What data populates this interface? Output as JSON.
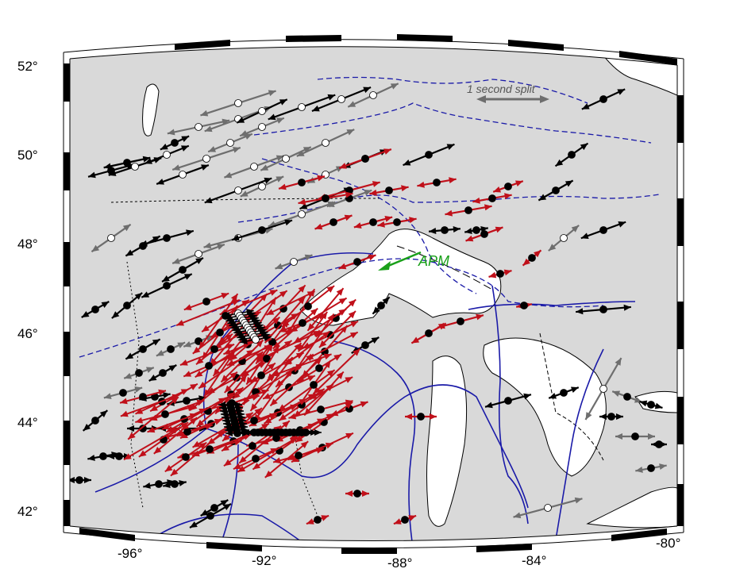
{
  "map": {
    "projection": "conic",
    "extent": {
      "lon": [
        -97.5,
        -80.0
      ],
      "lat": [
        41.7,
        52.0
      ]
    },
    "colors": {
      "land": "#d9d9d9",
      "water": "#ffffff",
      "coast": "#000000",
      "boundary_solid": "#1a1aa8",
      "boundary_dashed": "#1a1aa8",
      "split_black": "#000000",
      "split_gray": "#6e6e6e",
      "split_red": "#c0101a",
      "apm": "#1aa01a",
      "frame": "#000000"
    }
  },
  "axes": {
    "lat_labels": [
      "52°",
      "50°",
      "48°",
      "46°",
      "44°",
      "42°"
    ],
    "lon_labels": [
      "-96°",
      "-92°",
      "-88°",
      "-84°",
      "-80°"
    ]
  },
  "legend": {
    "label": "1 second split"
  },
  "apm": {
    "label": "APM",
    "icon": "arrow-icon"
  },
  "station_legend": {
    "filled": "station-filled-icon",
    "open": "station-open-icon"
  }
}
